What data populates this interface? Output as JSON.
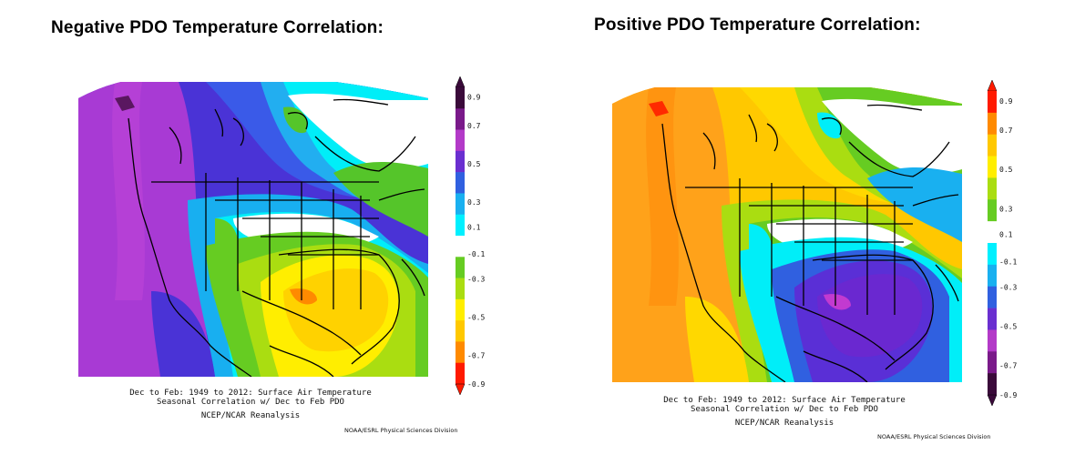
{
  "panels": [
    {
      "title": "Negative PDO Temperature Correlation:",
      "caption_line1": "Dec to Feb: 1949 to 2012: Surface Air Temperature",
      "caption_line2": "Seasonal Correlation w/ Dec to Feb PDO",
      "caption_line3": "NCEP/NCAR Reanalysis",
      "credit": "NOAA/ESRL Physical Sciences Division",
      "colorbar": {
        "ticks": [
          "0.9",
          "0.7",
          "0.5",
          "0.3",
          "0.1",
          "-0.1",
          "-0.3",
          "-0.5",
          "-0.7",
          "-0.9"
        ],
        "colors": [
          "#3a0a3a",
          "#7a1a8a",
          "#b33ac8",
          "#6a2fd0",
          "#3060e0",
          "#19b0f0",
          "#00f0ff",
          "#ffffff",
          "#66cc22",
          "#aadd11",
          "#ffee00",
          "#ffc800",
          "#ff8a00",
          "#ff1a00"
        ]
      }
    },
    {
      "title": "Positive PDO Temperature Correlation:",
      "caption_line1": "Dec to Feb: 1949 to 2012: Surface Air Temperature",
      "caption_line2": "Seasonal Correlation w/ Dec to Feb PDO",
      "caption_line3": "NCEP/NCAR Reanalysis",
      "credit": "NOAA/ESRL Physical Sciences Division",
      "colorbar": {
        "ticks": [
          "0.9",
          "0.7",
          "0.5",
          "0.3",
          "0.1",
          "-0.1",
          "-0.3",
          "-0.5",
          "-0.7",
          "-0.9"
        ],
        "colors": [
          "#ff1a00",
          "#ff8a00",
          "#ffc800",
          "#ffee00",
          "#aadd11",
          "#66cc22",
          "#ffffff",
          "#00f0ff",
          "#19b0f0",
          "#3060e0",
          "#6a2fd0",
          "#b33ac8",
          "#7a1a8a",
          "#3a0a3a"
        ]
      }
    }
  ]
}
